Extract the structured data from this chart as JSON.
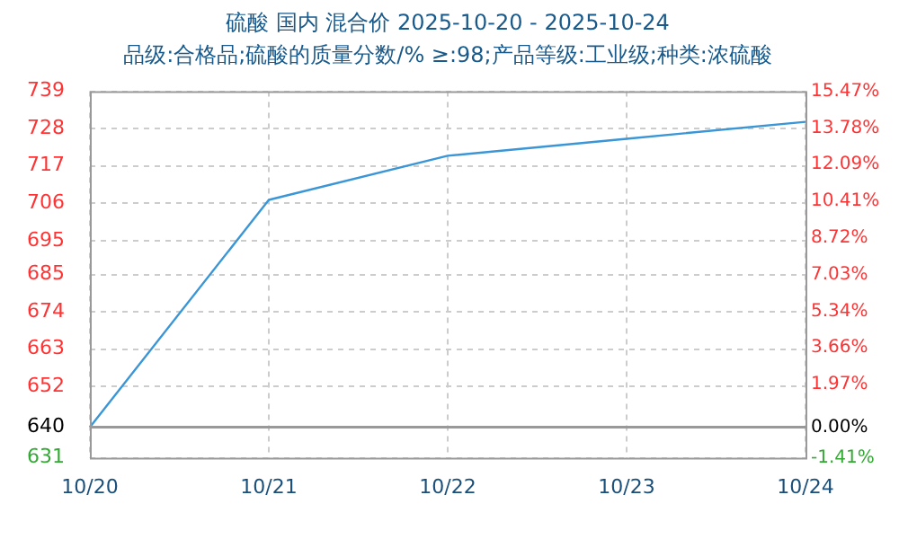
{
  "chart_data": {
    "type": "line",
    "title": "硫酸 国内 混合价 2025-10-20 - 2025-10-24",
    "subtitle": "品级:合格品;硫酸的质量分数/% ≥:98;产品等级:工业级;种类:浓硫酸",
    "categories": [
      "10/20",
      "10/21",
      "10/22",
      "10/23",
      "10/24"
    ],
    "series": [
      {
        "color": "#3a96d6",
        "values": [
          640,
          707,
          720,
          725,
          730
        ]
      }
    ],
    "ylim": [
      631,
      739
    ],
    "yticks": [
      631,
      640,
      652,
      663,
      674,
      685,
      695,
      706,
      717,
      728,
      739
    ],
    "y2lim": [
      -1.41,
      15.47
    ],
    "y2ticks": [
      {
        "value": -1.41,
        "label": "-1.41%"
      },
      {
        "value": 0,
        "label": "0.00%"
      },
      {
        "value": 1.97,
        "label": "1.97%"
      },
      {
        "value": 3.66,
        "label": "3.66%"
      },
      {
        "value": 5.34,
        "label": "5.34%"
      },
      {
        "value": 7.03,
        "label": "7.03%"
      },
      {
        "value": 8.72,
        "label": "8.72%"
      },
      {
        "value": 10.41,
        "label": "10.41%"
      },
      {
        "value": 12.09,
        "label": "12.09%"
      },
      {
        "value": 13.78,
        "label": "13.78%"
      },
      {
        "value": 15.47,
        "label": "15.47%"
      }
    ],
    "ref_lines": [
      {
        "axis": "y",
        "value": 640,
        "color": "#999999"
      }
    ],
    "grid": true,
    "legend": false,
    "marker": "none",
    "line_style": "solid"
  }
}
